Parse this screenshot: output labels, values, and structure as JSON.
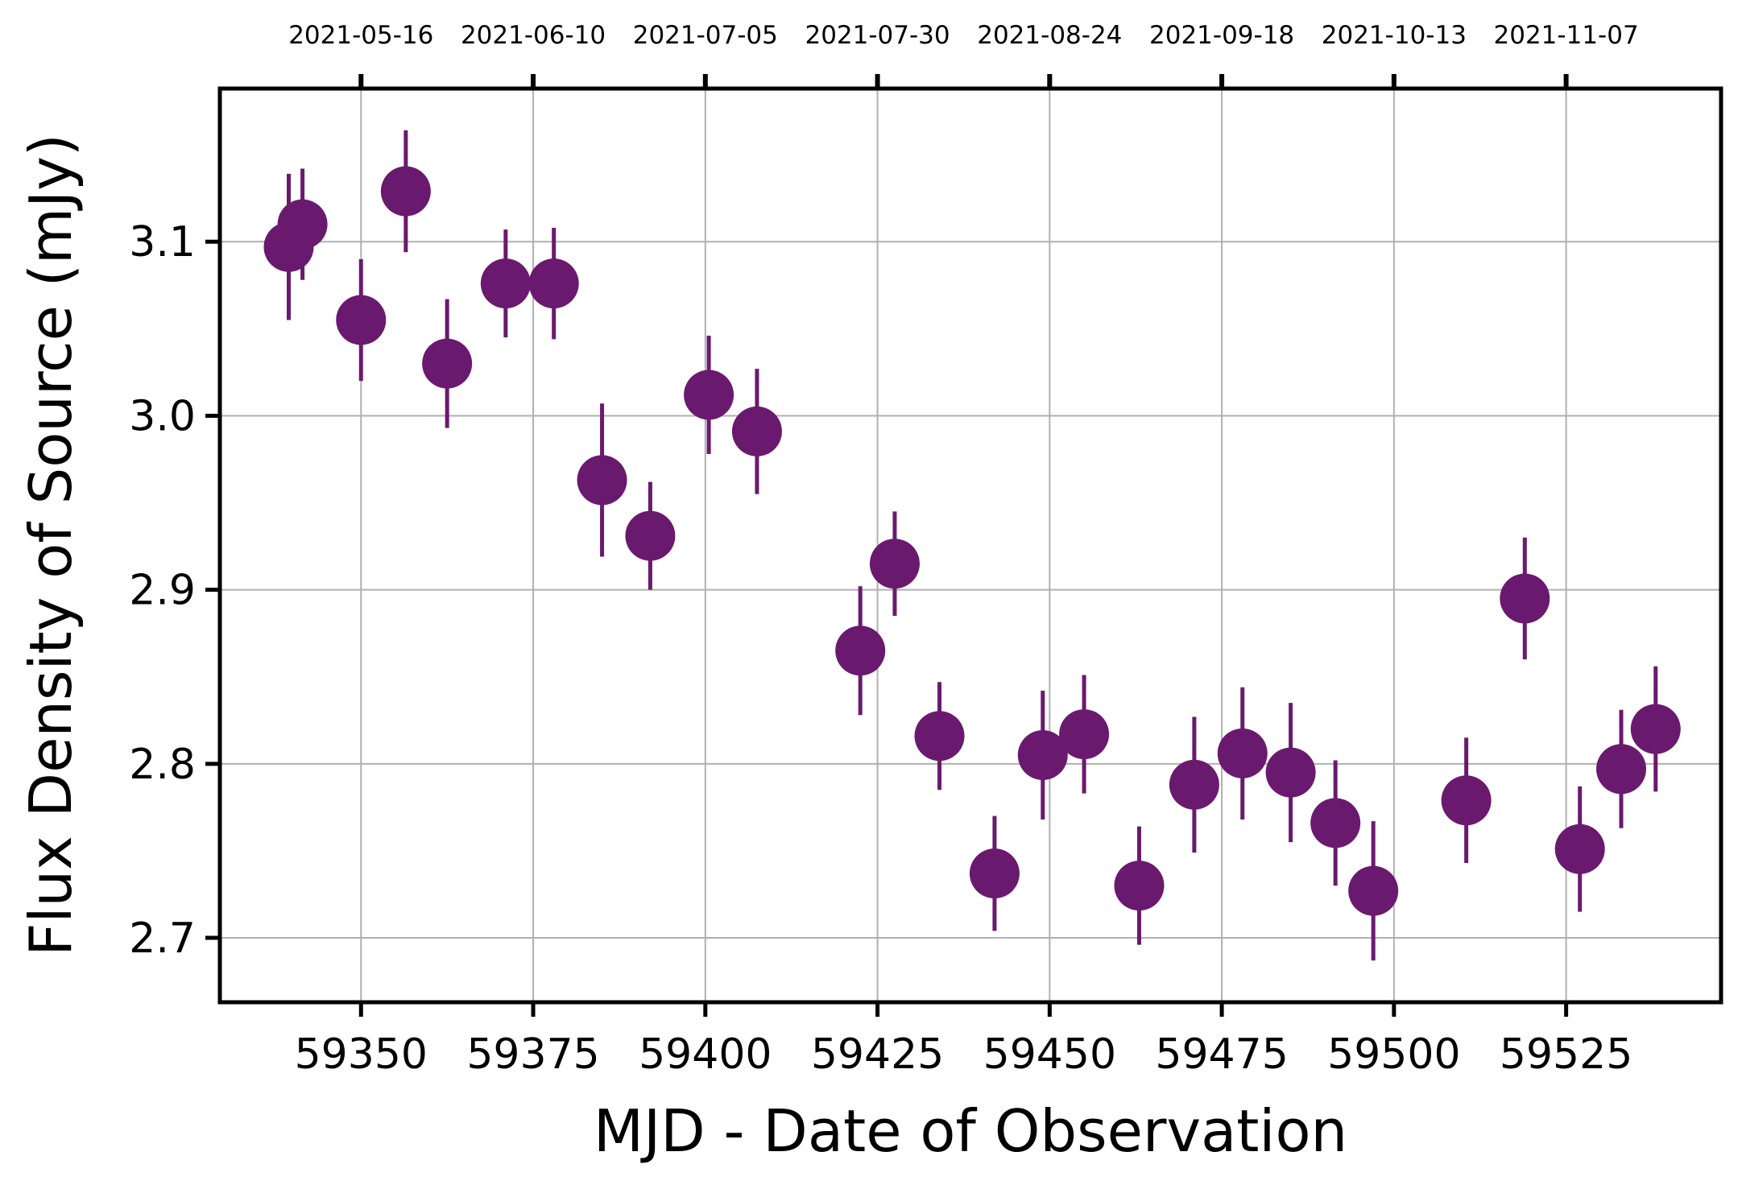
{
  "chart_data": {
    "type": "scatter",
    "title": "",
    "xlabel": "MJD - Date of Observation",
    "ylabel": "Flux Density of Source (mJy)",
    "xlim": [
      59329.5,
      59547.5
    ],
    "ylim": [
      2.663,
      3.188
    ],
    "grid": true,
    "marker_color": "#6a1a6e",
    "x_ticks": [
      59350,
      59375,
      59400,
      59425,
      59450,
      59475,
      59500,
      59525
    ],
    "x_tick_labels": [
      "59350",
      "59375",
      "59400",
      "59425",
      "59450",
      "59475",
      "59500",
      "59525"
    ],
    "y_ticks": [
      2.7,
      2.8,
      2.9,
      3.0,
      3.1
    ],
    "y_tick_labels": [
      "2.7",
      "2.8",
      "2.9",
      "3.0",
      "3.1"
    ],
    "top_x_ticks": [
      59350,
      59375,
      59400,
      59425,
      59450,
      59475,
      59500,
      59525
    ],
    "top_tick_labels": [
      "2021-05-16",
      "2021-06-10",
      "2021-07-05",
      "2021-07-30",
      "2021-08-24",
      "2021-09-18",
      "2021-10-13",
      "2021-11-07"
    ],
    "points": [
      {
        "x": 59339.5,
        "y": 3.097,
        "err": 0.042
      },
      {
        "x": 59341.5,
        "y": 3.11,
        "err": 0.032
      },
      {
        "x": 59350.0,
        "y": 3.055,
        "err": 0.035
      },
      {
        "x": 59356.5,
        "y": 3.129,
        "err": 0.035
      },
      {
        "x": 59362.5,
        "y": 3.03,
        "err": 0.037
      },
      {
        "x": 59371.0,
        "y": 3.076,
        "err": 0.031
      },
      {
        "x": 59378.0,
        "y": 3.076,
        "err": 0.032
      },
      {
        "x": 59385.0,
        "y": 2.963,
        "err": 0.044
      },
      {
        "x": 59392.0,
        "y": 2.931,
        "err": 0.031
      },
      {
        "x": 59400.5,
        "y": 3.012,
        "err": 0.034
      },
      {
        "x": 59407.5,
        "y": 2.991,
        "err": 0.036
      },
      {
        "x": 59422.5,
        "y": 2.865,
        "err": 0.037
      },
      {
        "x": 59427.5,
        "y": 2.915,
        "err": 0.03
      },
      {
        "x": 59434.0,
        "y": 2.816,
        "err": 0.031
      },
      {
        "x": 59442.0,
        "y": 2.737,
        "err": 0.033
      },
      {
        "x": 59449.0,
        "y": 2.805,
        "err": 0.037
      },
      {
        "x": 59455.0,
        "y": 2.817,
        "err": 0.034
      },
      {
        "x": 59463.0,
        "y": 2.73,
        "err": 0.034
      },
      {
        "x": 59471.0,
        "y": 2.788,
        "err": 0.039
      },
      {
        "x": 59478.0,
        "y": 2.806,
        "err": 0.038
      },
      {
        "x": 59485.0,
        "y": 2.795,
        "err": 0.04
      },
      {
        "x": 59491.5,
        "y": 2.766,
        "err": 0.036
      },
      {
        "x": 59497.0,
        "y": 2.727,
        "err": 0.04
      },
      {
        "x": 59510.5,
        "y": 2.779,
        "err": 0.036
      },
      {
        "x": 59519.0,
        "y": 2.895,
        "err": 0.035
      },
      {
        "x": 59527.0,
        "y": 2.751,
        "err": 0.036
      },
      {
        "x": 59533.0,
        "y": 2.797,
        "err": 0.034
      },
      {
        "x": 59538.0,
        "y": 2.82,
        "err": 0.036
      }
    ]
  }
}
